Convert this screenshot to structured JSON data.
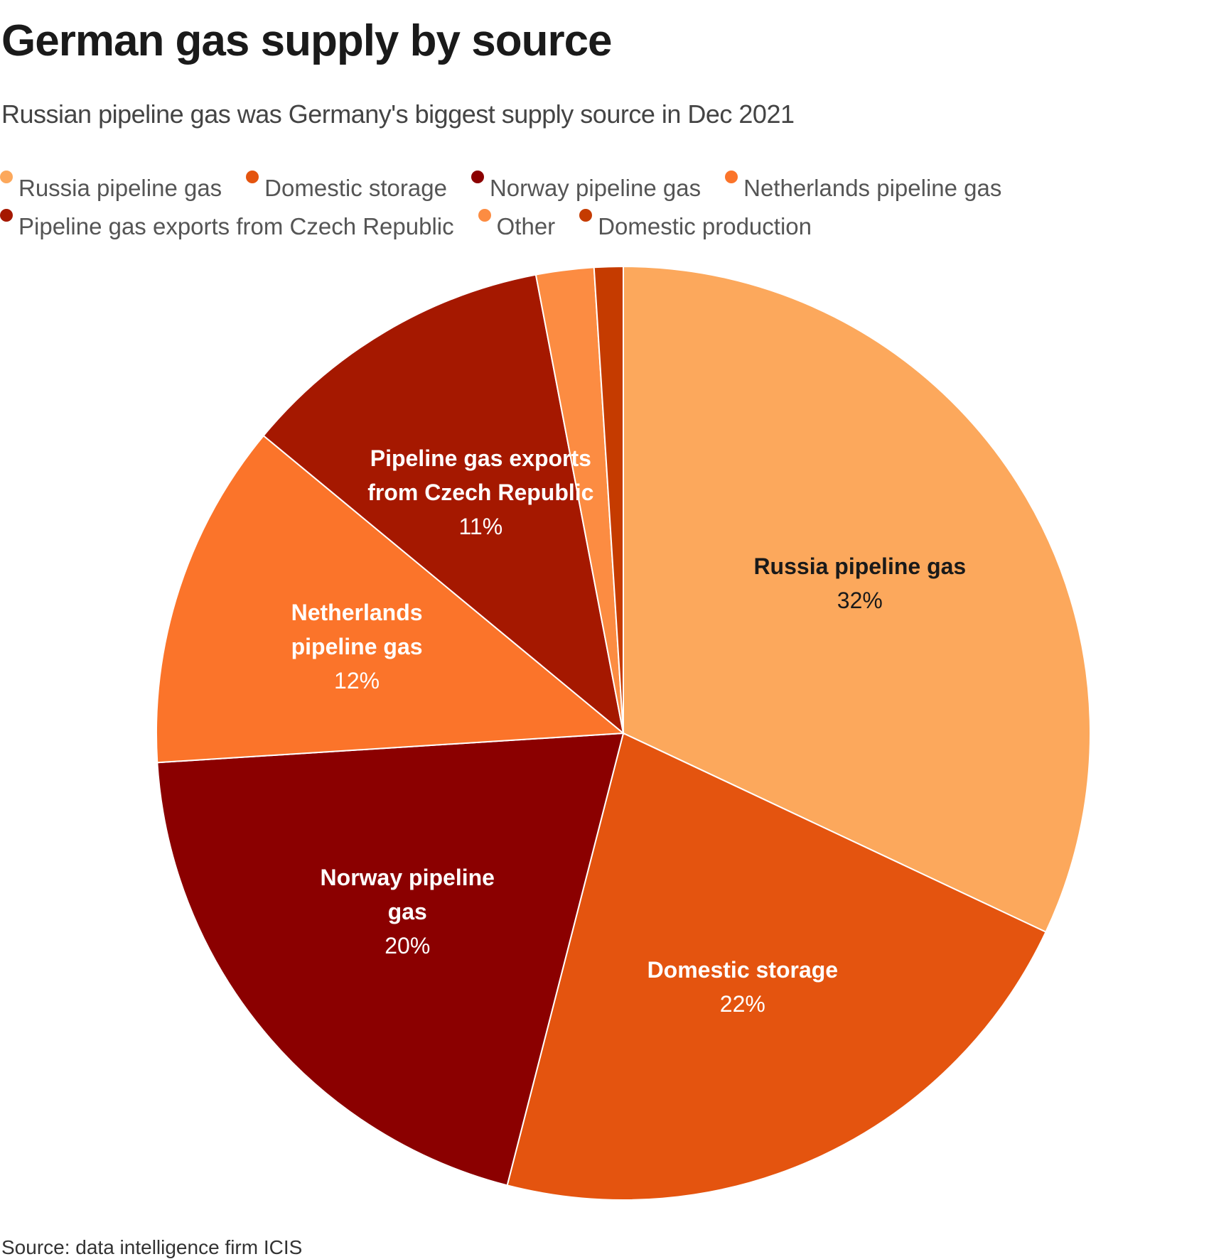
{
  "title": "German gas supply by source",
  "subtitle": "Russian pipeline gas was Germany's biggest supply source in Dec 2021",
  "source": "Source: data intelligence firm ICIS",
  "chart_data": {
    "type": "pie",
    "title": "German gas supply by source",
    "legend_placement": "top",
    "start_angle": "12 o'clock, clockwise",
    "slices": [
      {
        "name": "Russia pipeline gas",
        "value": 32,
        "label": "32%",
        "color": "#fca85c",
        "text_color": "#1a1a1a",
        "labeled": true
      },
      {
        "name": "Domestic storage",
        "value": 22,
        "label": "22%",
        "color": "#e4540f",
        "text_color": "#ffffff",
        "labeled": true
      },
      {
        "name": "Norway pipeline gas",
        "value": 20,
        "label": "20%",
        "color": "#8b0000",
        "text_color": "#ffffff",
        "labeled": true
      },
      {
        "name": "Netherlands pipeline gas",
        "value": 12,
        "label": "12%",
        "color": "#fb742a",
        "text_color": "#ffffff",
        "labeled": true
      },
      {
        "name": "Pipeline gas exports from Czech Republic",
        "value": 11,
        "label": "11%",
        "color": "#a51800",
        "text_color": "#ffffff",
        "labeled": true
      },
      {
        "name": "Other",
        "value": 2,
        "label": "",
        "color": "#fc8c42",
        "text_color": "#ffffff",
        "labeled": false
      },
      {
        "name": "Domestic production",
        "value": 1,
        "label": "",
        "color": "#c53b00",
        "text_color": "#ffffff",
        "labeled": false
      }
    ],
    "legend_rows": [
      [
        0,
        1,
        2,
        3
      ],
      [
        4,
        5,
        6
      ]
    ]
  }
}
